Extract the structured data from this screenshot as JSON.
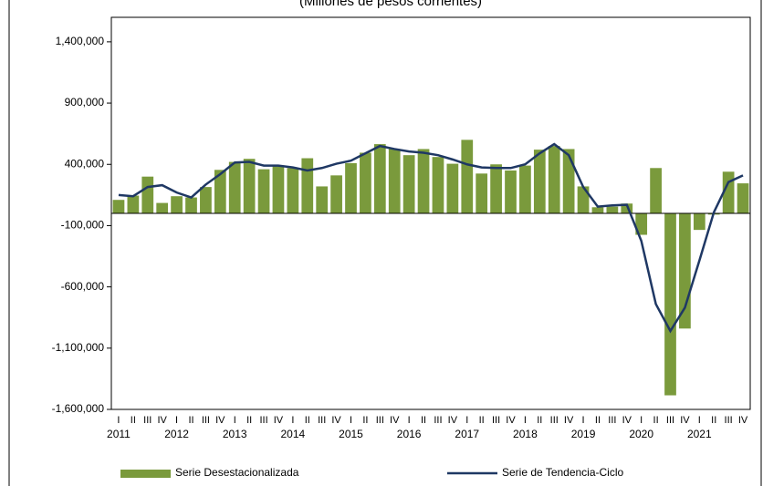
{
  "chart_data": {
    "type": "bar_line",
    "title": "(Millones de pesos corrientes)",
    "categories": [
      "I",
      "II",
      "III",
      "IV",
      "I",
      "II",
      "III",
      "IV",
      "I",
      "II",
      "III",
      "IV",
      "I",
      "II",
      "III",
      "IV",
      "I",
      "II",
      "III",
      "IV",
      "I",
      "II",
      "III",
      "IV",
      "I",
      "II",
      "III",
      "IV",
      "I",
      "II",
      "III",
      "IV",
      "I",
      "II",
      "III",
      "IV",
      "I",
      "II",
      "III",
      "IV",
      "I",
      "II",
      "III",
      "IV"
    ],
    "years": [
      "2011",
      "2012",
      "2013",
      "2014",
      "2015",
      "2016",
      "2017",
      "2018",
      "2019",
      "2020",
      "2021"
    ],
    "series": [
      {
        "name": "Serie Desestacionalizada",
        "kind": "bar",
        "color": "#7a9a3c",
        "values": [
          110000,
          145000,
          300000,
          85000,
          140000,
          130000,
          215000,
          355000,
          420000,
          445000,
          360000,
          385000,
          370000,
          450000,
          220000,
          310000,
          410000,
          495000,
          565000,
          525000,
          475000,
          525000,
          460000,
          405000,
          600000,
          325000,
          400000,
          350000,
          390000,
          520000,
          550000,
          525000,
          220000,
          50000,
          55000,
          80000,
          -175000,
          370000,
          -1485000,
          -940000,
          -135000,
          -10000,
          340000,
          245000
        ]
      },
      {
        "name": "Serie de Tendencia-Ciclo",
        "kind": "line",
        "color": "#1f3864",
        "values": [
          150000,
          140000,
          215000,
          230000,
          170000,
          130000,
          235000,
          320000,
          415000,
          420000,
          390000,
          390000,
          375000,
          350000,
          370000,
          405000,
          430000,
          490000,
          550000,
          525000,
          505000,
          495000,
          475000,
          440000,
          400000,
          375000,
          370000,
          370000,
          400000,
          490000,
          565000,
          475000,
          215000,
          55000,
          65000,
          70000,
          -225000,
          -740000,
          -960000,
          -770000,
          -385000,
          10000,
          255000,
          310000
        ]
      }
    ],
    "ylim": [
      -1600000,
      1600000
    ],
    "yticks": [
      {
        "value": -1600000,
        "label": "-1,600,000"
      },
      {
        "value": -1100000,
        "label": "-1,100,000"
      },
      {
        "value": -600000,
        "label": "-600,000"
      },
      {
        "value": -100000,
        "label": "-100,000"
      },
      {
        "value": 400000,
        "label": "400,000"
      },
      {
        "value": 900000,
        "label": "900,000"
      },
      {
        "value": 1400000,
        "label": "1,400,000"
      }
    ],
    "legend": "bottom"
  }
}
